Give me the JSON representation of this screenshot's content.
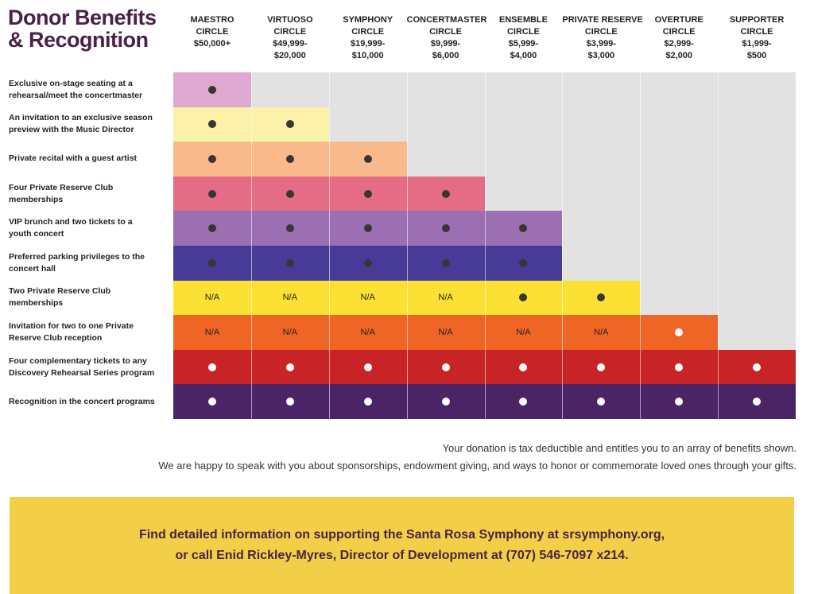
{
  "title": {
    "line1": "Donor Benefits",
    "line2": "& Recognition"
  },
  "tiers": [
    {
      "name1": "MAESTRO",
      "name2": "CIRCLE",
      "range1": "$50,000+",
      "range2": ""
    },
    {
      "name1": "VIRTUOSO",
      "name2": "CIRCLE",
      "range1": "$49,999-",
      "range2": "$20,000"
    },
    {
      "name1": "SYMPHONY",
      "name2": "CIRCLE",
      "range1": "$19,999-",
      "range2": "$10,000"
    },
    {
      "name1": "CONCERTMASTER",
      "name2": "CIRCLE",
      "range1": "$9,999-",
      "range2": "$6,000"
    },
    {
      "name1": "ENSEMBLE",
      "name2": "CIRCLE",
      "range1": "$5,999-",
      "range2": "$4,000"
    },
    {
      "name1": "PRIVATE RESERVE",
      "name2": "CIRCLE",
      "range1": "$3,999-",
      "range2": "$3,000"
    },
    {
      "name1": "OVERTURE",
      "name2": "CIRCLE",
      "range1": "$2,999-",
      "range2": "$2,000"
    },
    {
      "name1": "SUPPORTER",
      "name2": "CIRCLE",
      "range1": "$1,999-",
      "range2": "$500"
    }
  ],
  "benefits": [
    {
      "line1": "Exclusive on-stage seating at a",
      "line2": "rehearsal/meet the concertmaster",
      "color": "#dea8d0",
      "cells": [
        "dot",
        "",
        "",
        "",
        "",
        "",
        "",
        ""
      ]
    },
    {
      "line1": "An invitation to an exclusive season",
      "line2": "preview with the Music Director",
      "color": "#fbf1a8",
      "cells": [
        "dot",
        "dot",
        "",
        "",
        "",
        "",
        "",
        ""
      ]
    },
    {
      "line1": "Private recital with a guest artist",
      "line2": "",
      "color": "#f9b98b",
      "cells": [
        "dot",
        "dot",
        "dot",
        "",
        "",
        "",
        "",
        ""
      ]
    },
    {
      "line1": "Four Private Reserve Club",
      "line2": "memberships",
      "color": "#e46c85",
      "cells": [
        "dot",
        "dot",
        "dot",
        "dot",
        "",
        "",
        "",
        ""
      ]
    },
    {
      "line1": "VIP brunch and two tickets to a",
      "line2": "youth concert",
      "color": "#9b6fb1",
      "cells": [
        "dot",
        "dot",
        "dot",
        "dot",
        "dot",
        "",
        "",
        ""
      ]
    },
    {
      "line1": "Preferred parking privileges to the",
      "line2": "concert hall",
      "color": "#473b97",
      "cells": [
        "dot",
        "dot",
        "dot",
        "dot",
        "dot",
        "",
        "",
        ""
      ]
    },
    {
      "line1": "Two Private Reserve Club",
      "line2": "memberships",
      "color": "#fbe134",
      "cells": [
        "N/A",
        "N/A",
        "N/A",
        "N/A",
        "dot",
        "dot",
        "",
        ""
      ]
    },
    {
      "line1": "Invitation for two to one Private",
      "line2": "Reserve Club reception",
      "color": "#ef6526",
      "cells": [
        "N/A",
        "N/A",
        "N/A",
        "N/A",
        "N/A",
        "N/A",
        "wdot",
        ""
      ]
    },
    {
      "line1": "Four complementary tickets to any",
      "line2": "Discovery Rehearsal Series program",
      "color": "#c82427",
      "cells": [
        "wdot",
        "wdot",
        "wdot",
        "wdot",
        "wdot",
        "wdot",
        "wdot",
        "wdot"
      ]
    },
    {
      "line1": "Recognition in the concert programs",
      "line2": "",
      "color": "#4b2466",
      "cells": [
        "wdot",
        "wdot",
        "wdot",
        "wdot",
        "wdot",
        "wdot",
        "wdot",
        "wdot"
      ]
    }
  ],
  "notes": {
    "line1": "Your donation is tax deductible and entitles you to an array of benefits shown.",
    "line2": "We are happy to speak with you about sponsorships, endowment giving, and ways to honor or commemorate loved ones through your gifts."
  },
  "banner": {
    "line1": "Find detailed information on supporting the Santa Rosa Symphony at srsymphony.org,",
    "line2": "or call Enid Rickley-Myres, Director of Development at (707) 546-7097 x214."
  },
  "colors": {
    "title": "#4a2148",
    "empty": "#e2e2e2",
    "banner": "#f3cf47"
  }
}
